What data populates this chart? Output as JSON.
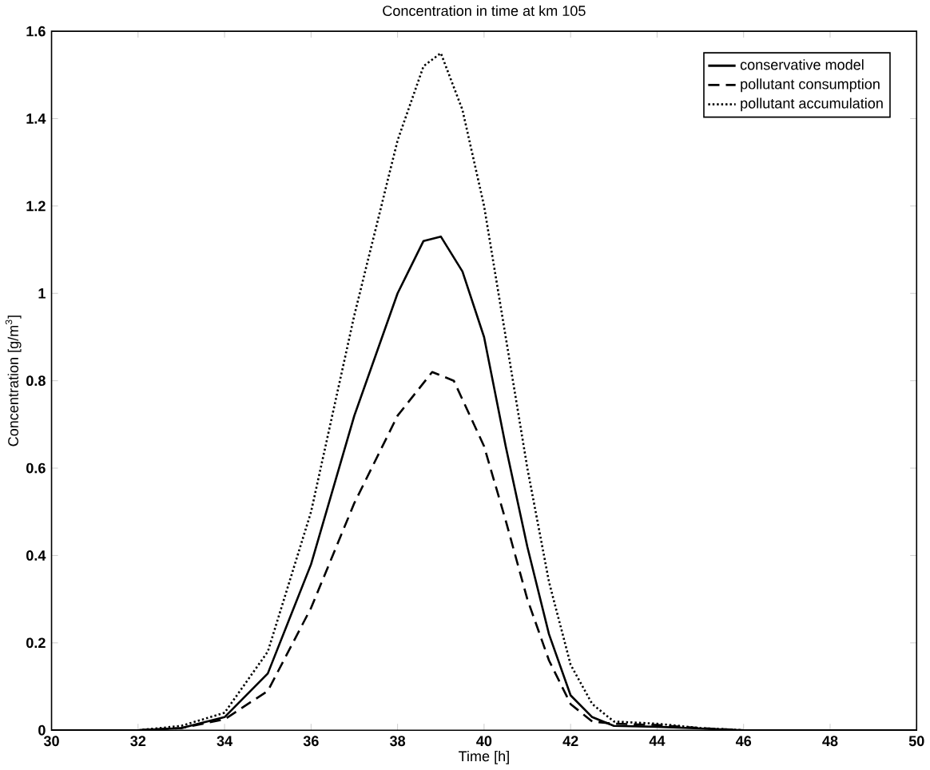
{
  "chart_data": {
    "type": "line",
    "title": "Concentration in time at km 105",
    "xlabel": "Time [h]",
    "ylabel": "Concentration [g/m$^{3}$]",
    "xlim": [
      30,
      50
    ],
    "ylim": [
      0,
      1.6
    ],
    "xticks": [
      30,
      32,
      34,
      36,
      38,
      40,
      42,
      44,
      46,
      48,
      50
    ],
    "yticks": [
      0,
      0.2,
      0.4,
      0.6,
      0.8,
      1,
      1.2,
      1.4,
      1.6
    ],
    "grid": false,
    "legend": "top right",
    "marker": "none",
    "series": [
      {
        "name": "conservative model",
        "color": "#000000",
        "line_style": "solid",
        "x": [
          30,
          32,
          33,
          34,
          35,
          36,
          37,
          38,
          38.6,
          39,
          39.5,
          40,
          40.5,
          41,
          41.5,
          42,
          42.5,
          43,
          44,
          45,
          46,
          48,
          50
        ],
        "values": [
          0,
          0,
          0.005,
          0.03,
          0.13,
          0.38,
          0.72,
          1.0,
          1.12,
          1.13,
          1.05,
          0.9,
          0.65,
          0.42,
          0.22,
          0.08,
          0.03,
          0.01,
          0.008,
          0.004,
          0,
          0,
          0
        ]
      },
      {
        "name": "pollutant consumption",
        "color": "#000000",
        "line_style": "dashed",
        "x": [
          30,
          32,
          33,
          34,
          35,
          36,
          37,
          38,
          38.8,
          39.3,
          40,
          40.5,
          41,
          41.5,
          42,
          42.5,
          43,
          44,
          45,
          46,
          48,
          50
        ],
        "values": [
          0,
          0,
          0.005,
          0.025,
          0.09,
          0.28,
          0.52,
          0.72,
          0.82,
          0.8,
          0.65,
          0.48,
          0.3,
          0.16,
          0.06,
          0.02,
          0.015,
          0.012,
          0.005,
          0,
          0,
          0
        ]
      },
      {
        "name": "pollutant accumulation",
        "color": "#000000",
        "line_style": "dotted",
        "x": [
          30,
          32,
          33,
          34,
          35,
          36,
          37,
          38,
          38.6,
          39,
          39.5,
          40,
          40.5,
          41,
          41.5,
          42,
          42.5,
          43,
          44,
          45,
          46,
          48,
          50
        ],
        "values": [
          0,
          0,
          0.01,
          0.04,
          0.18,
          0.5,
          0.95,
          1.35,
          1.52,
          1.55,
          1.42,
          1.2,
          0.9,
          0.6,
          0.34,
          0.15,
          0.06,
          0.02,
          0.015,
          0.005,
          0,
          0,
          0
        ]
      }
    ]
  }
}
